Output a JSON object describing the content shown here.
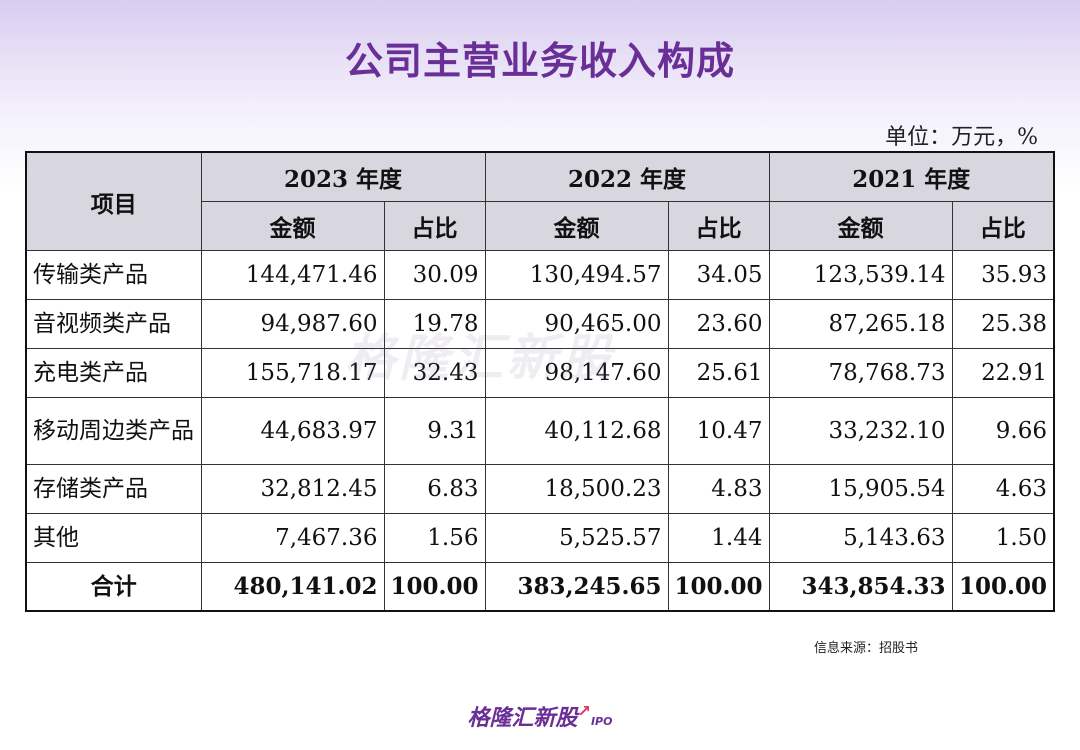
{
  "title": "公司主营业务收入构成",
  "unit": "单位：万元，%",
  "table": {
    "item_header": "项目",
    "years": [
      "2023 年度",
      "2022 年度",
      "2021 年度"
    ],
    "amount_label": "金额",
    "ratio_label": "占比",
    "rows": [
      {
        "name": "传输类产品",
        "values": [
          "144,471.46",
          "30.09",
          "130,494.57",
          "34.05",
          "123,539.14",
          "35.93"
        ]
      },
      {
        "name": "音视频类产品",
        "values": [
          "94,987.60",
          "19.78",
          "90,465.00",
          "23.60",
          "87,265.18",
          "25.38"
        ]
      },
      {
        "name": "充电类产品",
        "values": [
          "155,718.17",
          "32.43",
          "98,147.60",
          "25.61",
          "78,768.73",
          "22.91"
        ]
      },
      {
        "name": "移动周边类产品",
        "values": [
          "44,683.97",
          "9.31",
          "40,112.68",
          "10.47",
          "33,232.10",
          "9.66"
        ]
      },
      {
        "name": "存储类产品",
        "values": [
          "32,812.45",
          "6.83",
          "18,500.23",
          "4.83",
          "15,905.54",
          "4.63"
        ]
      },
      {
        "name": "其他",
        "values": [
          "7,467.36",
          "1.56",
          "5,525.57",
          "1.44",
          "5,143.63",
          "1.50"
        ]
      }
    ],
    "total": {
      "name": "合计",
      "values": [
        "480,141.02",
        "100.00",
        "383,245.65",
        "100.00",
        "343,854.33",
        "100.00"
      ]
    }
  },
  "watermark": "格隆汇新股",
  "source": "信息来源：招股书",
  "brand": {
    "name": "格隆汇新股",
    "suffix": "IPO"
  },
  "colors": {
    "title": "#6a2f97",
    "header_bg": "#d8d7df",
    "brand": "#6a2f97"
  }
}
